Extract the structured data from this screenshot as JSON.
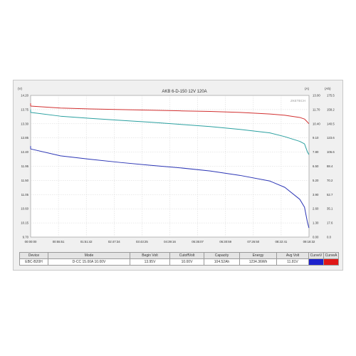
{
  "colors": {
    "voltage": "#d23030",
    "capacity": "#2aa0a0",
    "current": "#2b35b5",
    "swatch_v": "#1e22cc",
    "swatch_a": "#e01818"
  },
  "chart_data": {
    "type": "line",
    "title": "AKB 6-D-150 12V 120A",
    "watermark": "ZKETECH",
    "left_unit": "(V)",
    "right_unit_1": "(A)",
    "right_unit_2": "(Ah)",
    "left_ticks": [
      "14.20",
      "13.75",
      "13.30",
      "12.85",
      "12.40",
      "11.95",
      "11.50",
      "11.05",
      "10.60",
      "10.15",
      "9.70"
    ],
    "right_ticks_a": [
      "13.00",
      "11.70",
      "10.40",
      "9.10",
      "7.80",
      "6.50",
      "5.20",
      "3.90",
      "2.60",
      "1.30",
      "0.00"
    ],
    "right_ticks_ah": [
      "175.5",
      "158.2",
      "140.5",
      "123.6",
      "106.6",
      "88.4",
      "70.2",
      "52.7",
      "35.1",
      "17.6",
      "0.0"
    ],
    "x_ticks": [
      "00:00:00",
      "00:55:51",
      "01:51:42",
      "02:47:34",
      "03:43:25",
      "04:39:16",
      "05:35:07",
      "06:30:59",
      "07:26:50",
      "08:22:41",
      "09:18:32"
    ],
    "x_seconds": [
      0,
      3600,
      7200,
      10800,
      14400,
      18000,
      21600,
      25200,
      28800,
      30600,
      32400,
      32970,
      33300,
      33500
    ],
    "series": [
      {
        "key": "voltage",
        "values": [
          13.86,
          13.8,
          13.77,
          13.75,
          13.73,
          13.71,
          13.69,
          13.66,
          13.61,
          13.57,
          13.5,
          13.45,
          13.36,
          13.3
        ]
      },
      {
        "key": "capacity",
        "values": [
          13.66,
          13.54,
          13.47,
          13.41,
          13.35,
          13.28,
          13.21,
          13.12,
          13.01,
          12.89,
          12.74,
          12.66,
          12.42,
          12.32
        ]
      },
      {
        "key": "current",
        "values": [
          12.5,
          12.28,
          12.17,
          12.07,
          11.98,
          11.9,
          11.8,
          11.66,
          11.48,
          11.28,
          10.9,
          10.65,
          10.2,
          9.99
        ]
      }
    ],
    "ylim": [
      9.7,
      14.2
    ],
    "xlim": [
      0,
      33512
    ],
    "grid": true
  },
  "info_table": {
    "headers": [
      "Device",
      "Mode",
      "Begin Volt",
      "CutoffVolt",
      "Capacity",
      "Energy",
      "Avg Volt",
      "CurveV",
      "CurveA"
    ],
    "row": [
      "EBC-B20H",
      "D-CC 15.00A 10.00V",
      "13.95V",
      "10.00V",
      "104.52Ah",
      "1234.36Wh",
      "11.81V",
      "",
      ""
    ]
  }
}
